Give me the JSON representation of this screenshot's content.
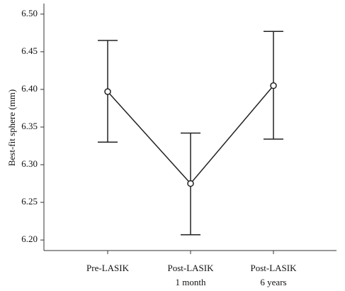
{
  "chart_data": {
    "type": "line-errorbar",
    "y_label": "Best-fit sphere (mm)",
    "categories": [
      [
        "Pre-LASIK"
      ],
      [
        "Post-LASIK",
        "1 month"
      ],
      [
        "Post-LASIK",
        "6 years"
      ]
    ],
    "values": [
      6.397,
      6.275,
      6.405
    ],
    "lower": [
      6.33,
      6.207,
      6.334
    ],
    "upper": [
      6.465,
      6.342,
      6.477
    ],
    "color": "#222222",
    "ylim": [
      6.186,
      6.514
    ],
    "yticks": [
      {
        "value": 6.2,
        "label": "6.20"
      },
      {
        "value": 6.25,
        "label": "6.25"
      },
      {
        "value": 6.3,
        "label": "6.30"
      },
      {
        "value": 6.35,
        "label": "6.35"
      },
      {
        "value": 6.4,
        "label": "6.40"
      },
      {
        "value": 6.45,
        "label": "6.45"
      },
      {
        "value": 6.5,
        "label": "6.50"
      }
    ]
  }
}
